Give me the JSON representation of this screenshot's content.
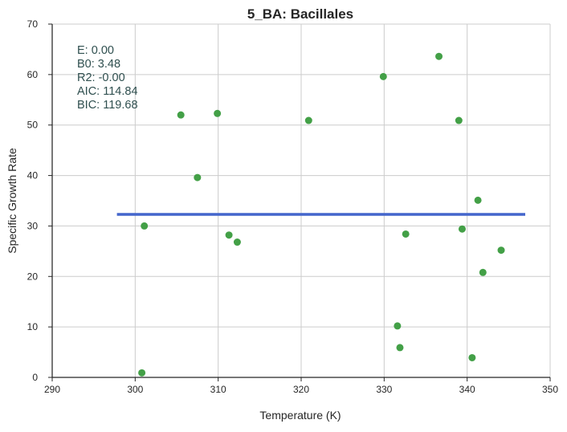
{
  "chart_data": {
    "type": "scatter",
    "title": "5_BA: Bacillales",
    "xlabel": "Temperature (K)",
    "ylabel": "Specific Growth Rate",
    "xlim": [
      290,
      350
    ],
    "ylim": [
      0,
      70
    ],
    "xticks": [
      290,
      300,
      310,
      320,
      330,
      340,
      350
    ],
    "yticks": [
      0,
      10,
      20,
      30,
      40,
      50,
      60,
      70
    ],
    "grid": true,
    "series": [
      {
        "kind": "points",
        "color": "#43a047",
        "x": [
          300.8,
          301.1,
          305.5,
          307.5,
          309.9,
          311.3,
          312.3,
          320.9,
          329.9,
          331.6,
          331.9,
          332.6,
          336.6,
          339.0,
          339.4,
          340.6,
          341.3,
          341.9,
          344.1
        ],
        "y": [
          0.9,
          30.0,
          52.0,
          39.6,
          52.3,
          28.2,
          26.8,
          50.9,
          59.6,
          10.2,
          5.9,
          28.4,
          63.6,
          50.9,
          29.4,
          3.9,
          35.1,
          20.8,
          25.2
        ]
      },
      {
        "kind": "fit-line",
        "color": "#4466cc",
        "x": [
          297.8,
          347.0
        ],
        "y": [
          32.3,
          32.3
        ]
      }
    ],
    "annotations": [
      "E:  0.00",
      "B0:  3.48",
      "R2:  -0.00",
      "AIC: 114.84",
      "BIC: 119.68"
    ]
  }
}
